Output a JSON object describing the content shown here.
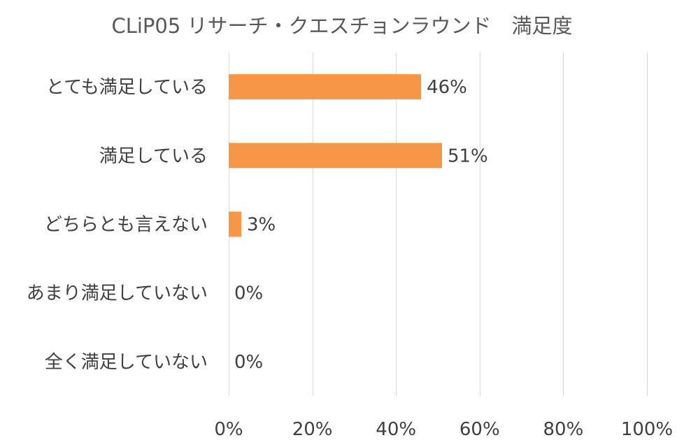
{
  "chart_data": {
    "type": "bar",
    "orientation": "horizontal",
    "title": "CLiP05 リサーチ・クエスチョンラウンド　満足度",
    "categories": [
      "とても満足している",
      "満足している",
      "どちらとも言えない",
      "あまり満足していない",
      "全く満足していない"
    ],
    "values": [
      46,
      51,
      3,
      0,
      0
    ],
    "data_labels": [
      "46%",
      "51%",
      "3%",
      "0%",
      "0%"
    ],
    "xlim": [
      0,
      100
    ],
    "xticks": [
      "0%",
      "20%",
      "40%",
      "60%",
      "80%",
      "100%"
    ],
    "xtick_values": [
      0,
      20,
      40,
      60,
      80,
      100
    ],
    "grid": "vertical",
    "legend": "none",
    "colors": {
      "bar": "#F79646",
      "grid": "#D9D9D9",
      "text": "#404040",
      "title": "#595959"
    }
  }
}
